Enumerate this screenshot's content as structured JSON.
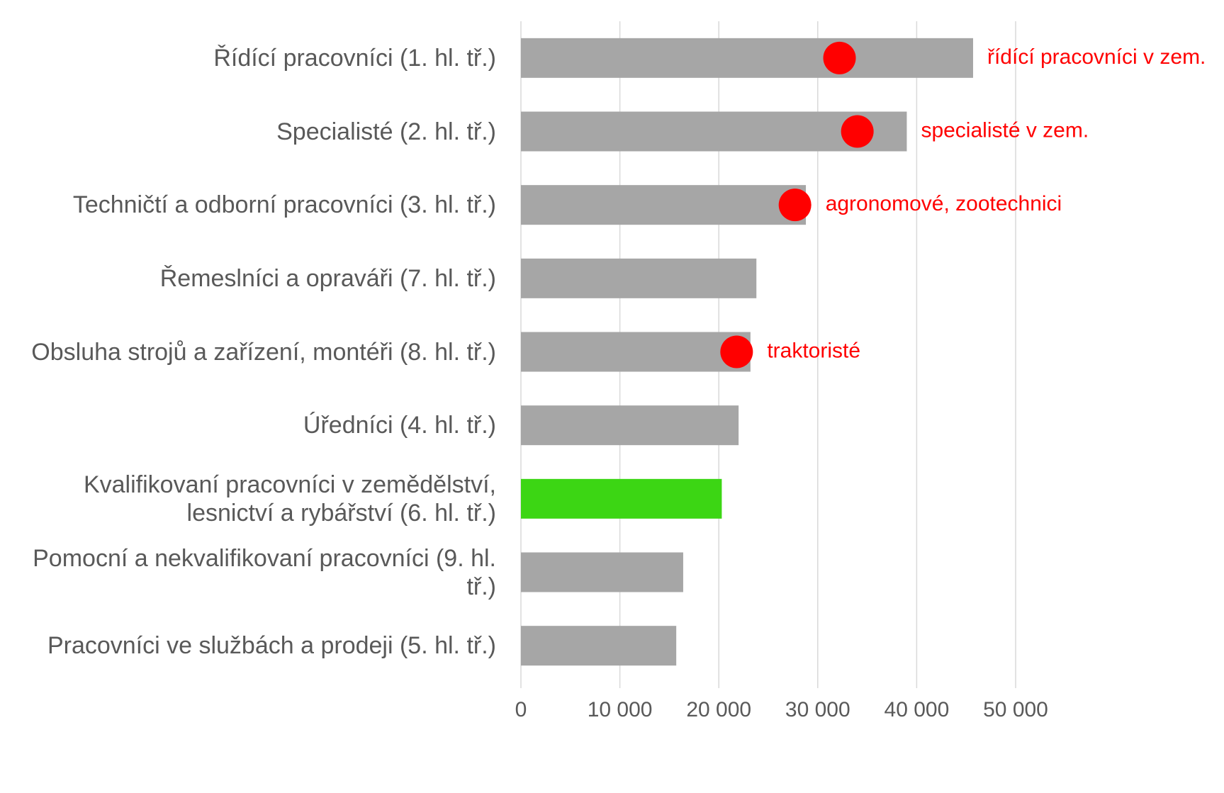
{
  "chart_data": {
    "type": "bar",
    "orientation": "horizontal",
    "categories": [
      "Řídící pracovníci (1. hl. tř.)",
      "Specialisté (2. hl. tř.)",
      "Techničtí a odborní pracovníci (3. hl. tř.)",
      "Řemeslníci a opraváři (7. hl. tř.)",
      "Obsluha strojů a zařízení, montéři (8. hl. tř.)",
      "Úředníci (4. hl. tř.)",
      "Kvalifikovaní pracovníci v zemědělství, lesnictví a rybářství (6. hl. tř.)",
      "Pomocní a nekvalifikovaní pracovníci (9. hl. tř.)",
      "Pracovníci ve službách a prodeji (5. hl. tř.)"
    ],
    "values": [
      45700,
      39000,
      28800,
      23800,
      23200,
      22000,
      20300,
      16400,
      15700
    ],
    "colors": [
      "#a6a6a6",
      "#a6a6a6",
      "#a6a6a6",
      "#a6a6a6",
      "#a6a6a6",
      "#a6a6a6",
      "#3cd614",
      "#a6a6a6",
      "#a6a6a6"
    ],
    "markers": {
      "color": "#ff0000",
      "values": [
        32200,
        34000,
        27700,
        null,
        21800,
        null,
        null,
        null,
        null
      ],
      "labels": [
        "řídící pracovníci v zem.",
        "specialisté v zem.",
        "agronomové, zootechnici",
        null,
        "traktoristé",
        null,
        null,
        null,
        null
      ]
    },
    "xlim": [
      0,
      50000
    ],
    "xticks": [
      0,
      {
        "value": 10000,
        "label": "10 000"
      },
      {
        "value": 20000,
        "label": "20 000"
      },
      {
        "value": 30000,
        "label": "30 000"
      },
      {
        "value": 40000,
        "label": "40 000"
      },
      {
        "value": 50000,
        "label": "50 000"
      }
    ],
    "grid": true
  }
}
